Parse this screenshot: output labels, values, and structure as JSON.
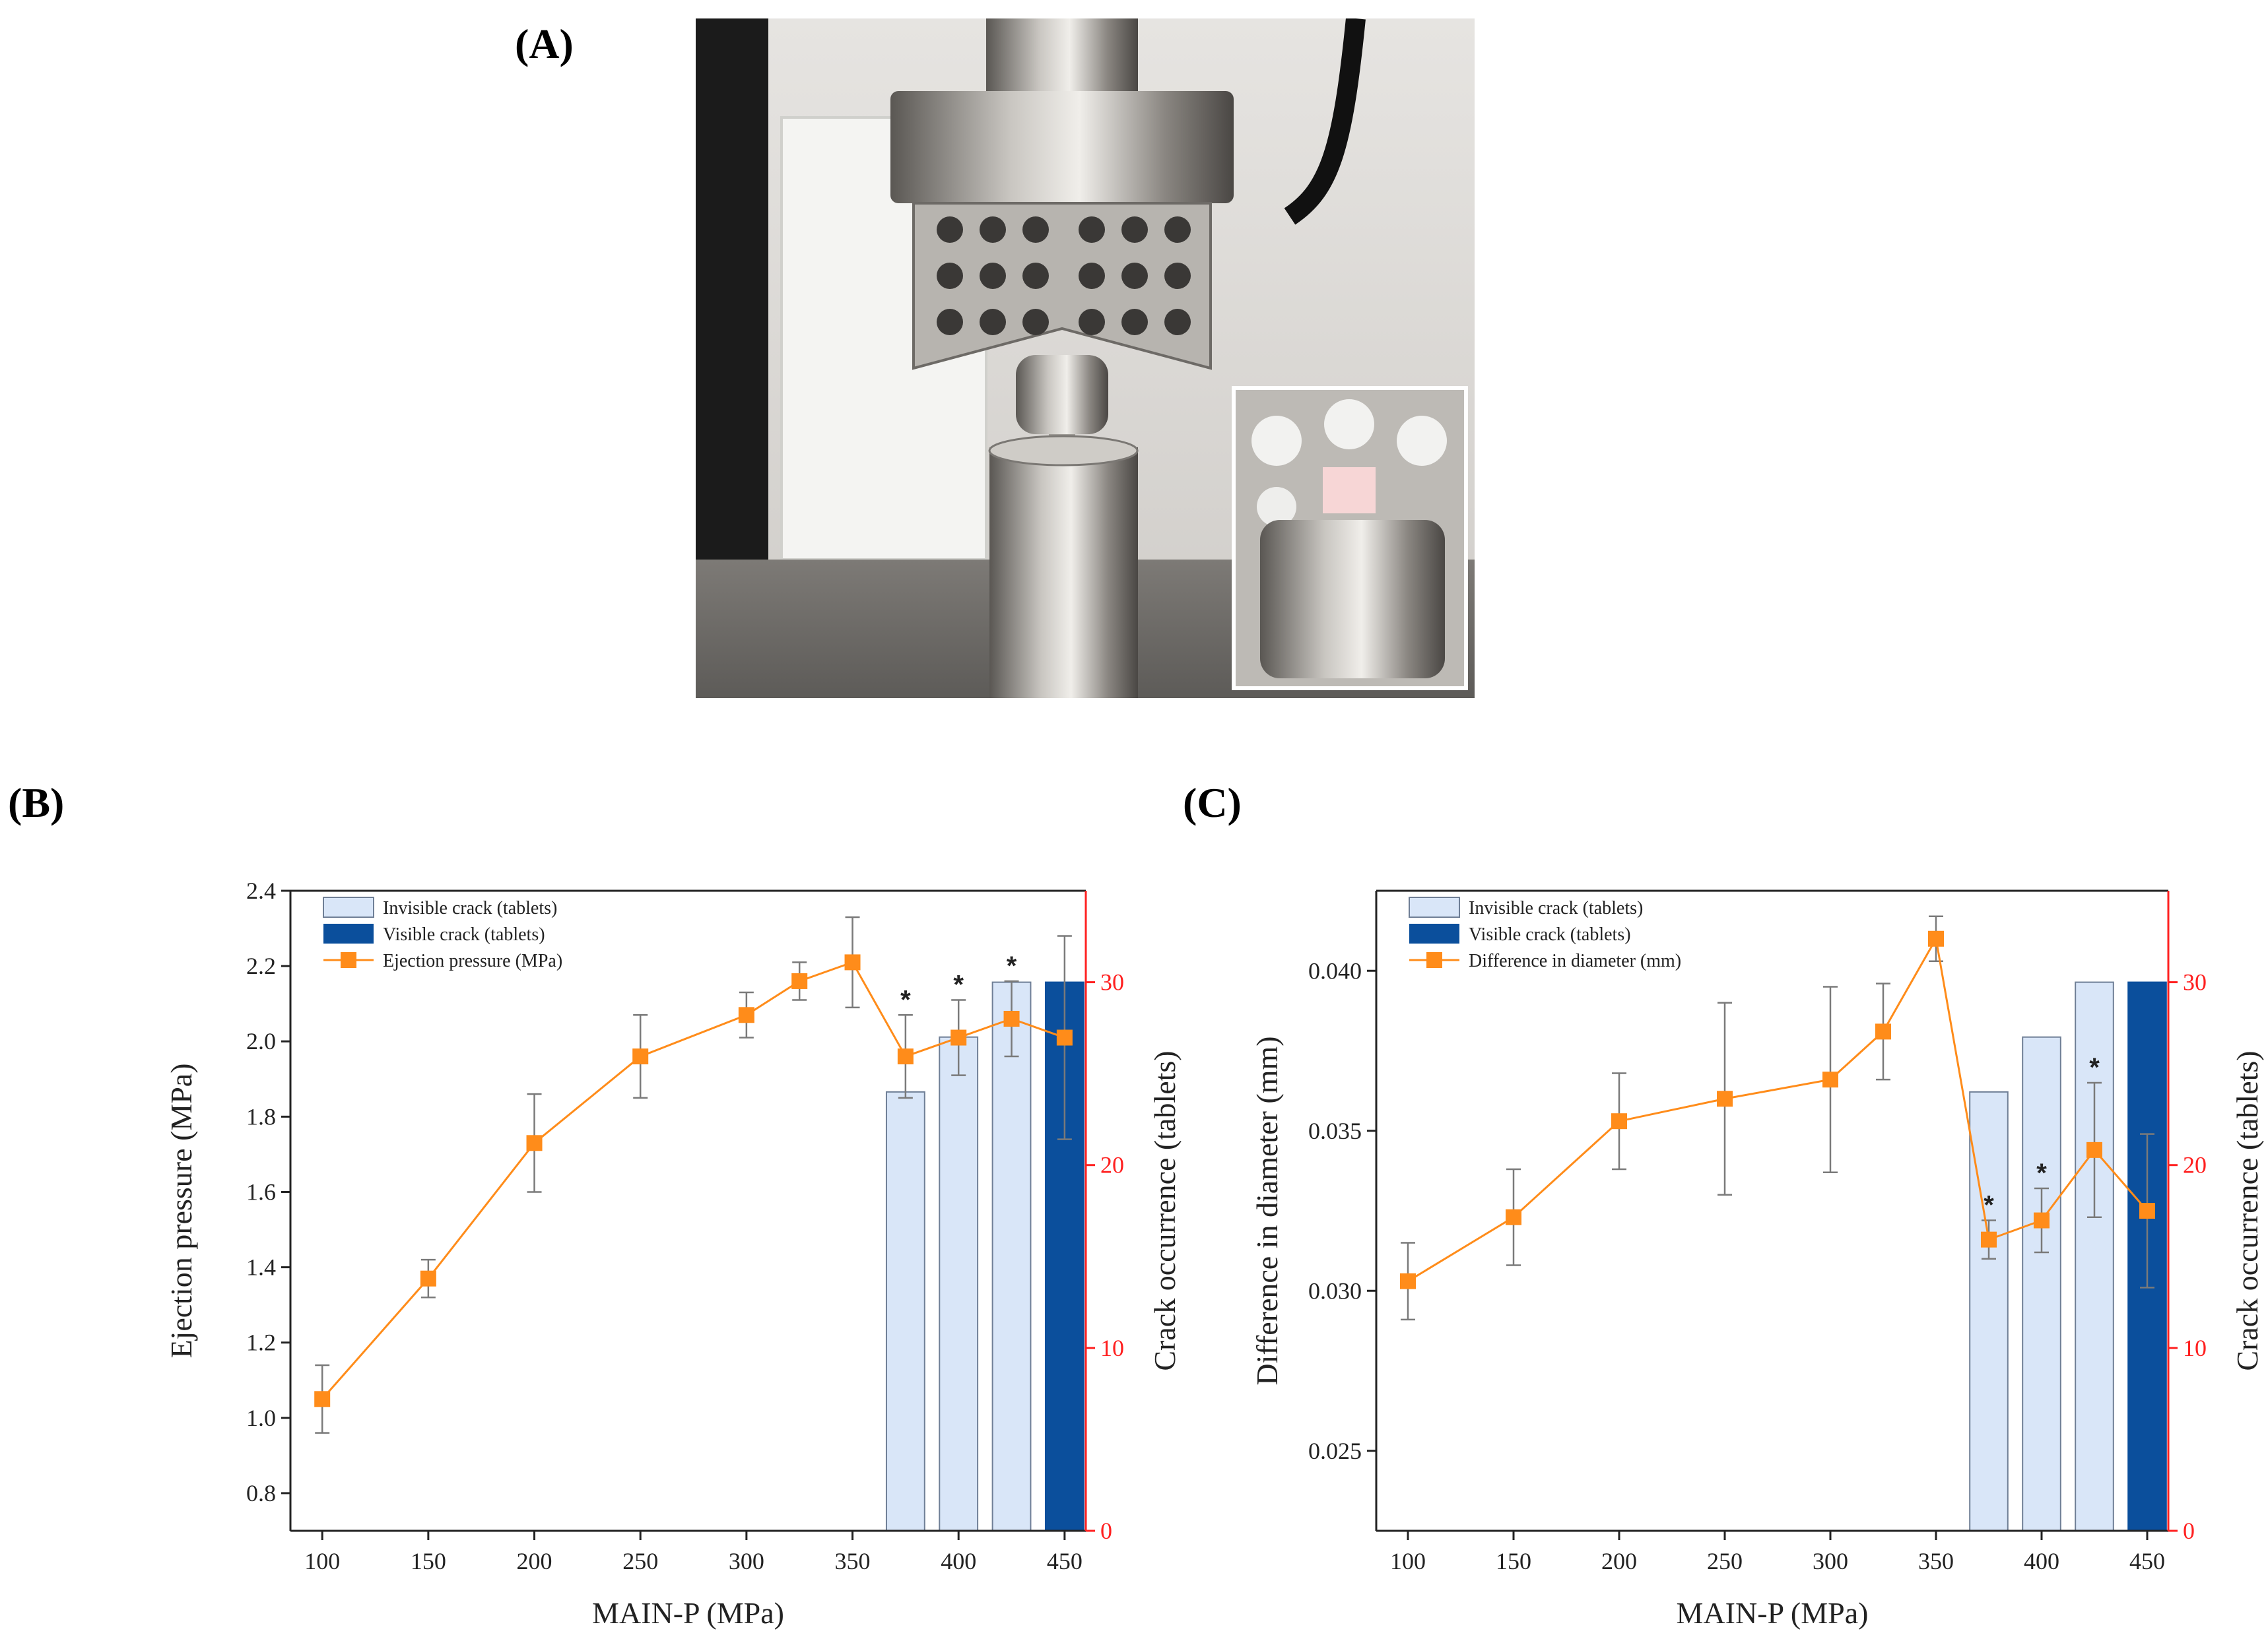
{
  "panels": {
    "a_label": "(A)",
    "b_label": "(B)",
    "c_label": "(C)"
  },
  "photo": {
    "description_icon": "tablet-press-photo",
    "colors": {
      "background_wall": "#e8e6e3",
      "steel": "#8d8a86",
      "base": "#6f6d6a"
    }
  },
  "colors": {
    "line": "#ff8c1a",
    "marker": "#ff8c1a",
    "bar_light": "#d9e6f8",
    "bar_dark": "#0b4f9c",
    "right_axis": "#ff2020",
    "error_bar": "#7a7a7a"
  },
  "chart_data": [
    {
      "type": "bar+line",
      "xlabel": "MAIN-P (MPa)",
      "ylabel": "Ejection pressure (MPa)",
      "y2label": "Crack occurrence (tablets)",
      "x_ticks": [
        100,
        150,
        200,
        250,
        300,
        350,
        400,
        450
      ],
      "xlim": [
        85,
        460
      ],
      "ylim": [
        0.7,
        2.4
      ],
      "y_ticks": [
        0.8,
        1.0,
        1.2,
        1.4,
        1.6,
        1.8,
        2.0,
        2.2,
        2.4
      ],
      "y2lim": [
        0,
        35
      ],
      "y2_ticks": [
        0,
        10,
        20,
        30
      ],
      "legend_position": "top-left",
      "legend": [
        "Invisible crack (tablets)",
        "Visible crack (tablets)",
        "Ejection pressure (MPa)"
      ],
      "series": [
        {
          "name": "Ejection pressure (MPa)",
          "type": "line",
          "x": [
            100,
            150,
            200,
            250,
            300,
            325,
            350,
            375,
            400,
            425,
            450
          ],
          "y": [
            1.05,
            1.37,
            1.73,
            1.96,
            2.07,
            2.16,
            2.21,
            1.96,
            2.01,
            2.06,
            2.01
          ],
          "err": [
            0.09,
            0.05,
            0.13,
            0.11,
            0.06,
            0.05,
            0.12,
            0.11,
            0.1,
            0.1,
            0.27
          ],
          "y_axis": "left"
        },
        {
          "name": "Invisible crack (tablets)",
          "type": "bar",
          "x": [
            375,
            400,
            425
          ],
          "values": [
            24,
            27,
            30
          ],
          "y_axis": "right"
        },
        {
          "name": "Visible crack (tablets)",
          "type": "bar",
          "x": [
            450
          ],
          "values": [
            30
          ],
          "y_axis": "right"
        }
      ],
      "annotations": [
        {
          "x": 375,
          "text": "*"
        },
        {
          "x": 400,
          "text": "*"
        },
        {
          "x": 425,
          "text": "*"
        }
      ]
    },
    {
      "type": "bar+line",
      "xlabel": "MAIN-P (MPa)",
      "ylabel": "Difference in diameter (mm)",
      "y2label": "Crack occurrence (tablets)",
      "x_ticks": [
        100,
        150,
        200,
        250,
        300,
        350,
        400,
        450
      ],
      "xlim": [
        85,
        460
      ],
      "ylim": [
        0.0225,
        0.0425
      ],
      "y_ticks": [
        0.025,
        0.03,
        0.035,
        0.04
      ],
      "y_tick_labels": [
        "0.025",
        "0.030",
        "0.035",
        "0.040"
      ],
      "y2lim": [
        0,
        35
      ],
      "y2_ticks": [
        0,
        10,
        20,
        30
      ],
      "legend_position": "top-left",
      "legend": [
        "Invisible crack (tablets)",
        "Visible crack (tablets)",
        "Difference in diameter (mm)"
      ],
      "series": [
        {
          "name": "Difference in diameter (mm)",
          "type": "line",
          "x": [
            100,
            150,
            200,
            250,
            300,
            325,
            350,
            375,
            400,
            425,
            450
          ],
          "y": [
            0.0303,
            0.0323,
            0.0353,
            0.036,
            0.0366,
            0.0381,
            0.041,
            0.0316,
            0.0322,
            0.0344,
            0.0325
          ],
          "err": [
            0.0012,
            0.0015,
            0.0015,
            0.003,
            0.0029,
            0.0015,
            0.0007,
            0.0006,
            0.001,
            0.0021,
            0.0024
          ],
          "y_axis": "left"
        },
        {
          "name": "Invisible crack (tablets)",
          "type": "bar",
          "x": [
            375,
            400,
            425
          ],
          "values": [
            24,
            27,
            30
          ],
          "y_axis": "right"
        },
        {
          "name": "Visible crack (tablets)",
          "type": "bar",
          "x": [
            450
          ],
          "values": [
            30
          ],
          "y_axis": "right"
        }
      ],
      "annotations": [
        {
          "x": 375,
          "text": "*"
        },
        {
          "x": 400,
          "text": "*"
        },
        {
          "x": 425,
          "text": "*"
        }
      ]
    }
  ]
}
